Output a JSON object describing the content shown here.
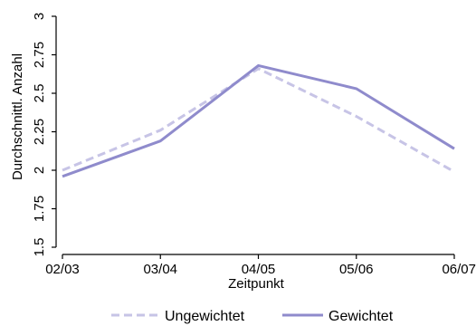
{
  "chart_data": {
    "type": "line",
    "xlabel": "Zeitpunkt",
    "ylabel": "Durchschnittl. Anzahl",
    "categories": [
      "02/03",
      "03/04",
      "04/05",
      "05/06",
      "06/07"
    ],
    "ylim": [
      1.5,
      3
    ],
    "yticks": [
      1.5,
      1.75,
      2,
      2.25,
      2.5,
      2.75,
      3
    ],
    "ytick_labels": [
      "1.5",
      "1.75",
      "2",
      "2.25",
      "2.5",
      "2.75",
      "3"
    ],
    "grid": false,
    "legend_position": "bottom",
    "series": [
      {
        "name": "Ungewichtet",
        "values": [
          2.0,
          2.26,
          2.66,
          2.35,
          1.99
        ],
        "color": "#c7c4e6",
        "style": "dashed"
      },
      {
        "name": "Gewichtet",
        "values": [
          1.96,
          2.19,
          2.68,
          2.53,
          2.14
        ],
        "color": "#8f8bcc",
        "style": "solid"
      }
    ]
  }
}
